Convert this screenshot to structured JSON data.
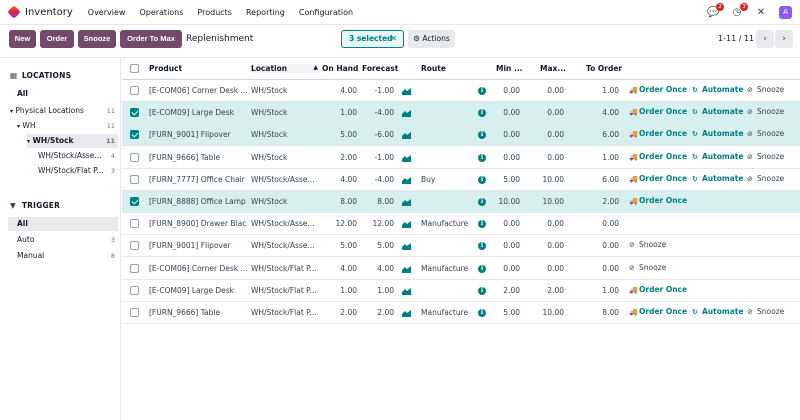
{
  "app": {
    "name": "Inventory"
  },
  "menu": [
    "Overview",
    "Operations",
    "Products",
    "Reporting",
    "Configuration"
  ],
  "nav": {
    "messages_badge": "2",
    "activity_badge": "3",
    "avatar_letter": "A"
  },
  "control": {
    "buttons": [
      "New",
      "Order",
      "Snooze",
      "Order To Max"
    ],
    "title": "Replenishment",
    "selected": "3 selected",
    "actions": "Actions",
    "pager": "1-11 / 11"
  },
  "sidebar": {
    "locations_title": "LOCATIONS",
    "locations": [
      {
        "label": "All",
        "count": "",
        "active": false,
        "bold": true
      },
      {
        "label": "Physical Locations",
        "count": "11",
        "active": false,
        "bold": false
      },
      {
        "label": "WH",
        "count": "11",
        "active": false,
        "bold": false
      },
      {
        "label": "WH/Stock",
        "count": "11",
        "active": true,
        "bold": true
      },
      {
        "label": "WH/Stock/Asse...",
        "count": "4",
        "active": false,
        "bold": false
      },
      {
        "label": "WH/Stock/Flat P...",
        "count": "3",
        "active": false,
        "bold": false
      }
    ],
    "trigger_title": "TRIGGER",
    "triggers": [
      {
        "label": "All",
        "count": "",
        "active": true
      },
      {
        "label": "Auto",
        "count": "3",
        "active": false
      },
      {
        "label": "Manual",
        "count": "8",
        "active": false
      }
    ]
  },
  "table": {
    "columns": [
      "Product",
      "Location",
      "On Hand",
      "Forecast",
      "Route",
      "Min ...",
      "Max...",
      "To Order"
    ],
    "actions": {
      "order_once": "Order Once",
      "automate": "Automate",
      "snooze": "Snooze"
    },
    "rows": [
      {
        "selected": false,
        "product": "[E-COM06] Corner Desk ...",
        "location": "WH/Stock",
        "on_hand": "4.00",
        "forecast": "-1.00",
        "route": "",
        "min": "0.00",
        "max": "0.00",
        "to_order": "1.00",
        "order_once": true,
        "automate": true,
        "snooze": true
      },
      {
        "selected": true,
        "product": "[E-COM09] Large Desk",
        "location": "WH/Stock",
        "on_hand": "1.00",
        "forecast": "-4.00",
        "route": "",
        "min": "0.00",
        "max": "0.00",
        "to_order": "4.00",
        "order_once": true,
        "automate": true,
        "snooze": true
      },
      {
        "selected": true,
        "product": "[FURN_9001] Flipover",
        "location": "WH/Stock",
        "on_hand": "5.00",
        "forecast": "-6.00",
        "route": "",
        "min": "0.00",
        "max": "0.00",
        "to_order": "6.00",
        "order_once": true,
        "automate": true,
        "snooze": true
      },
      {
        "selected": false,
        "product": "[FURN_9666] Table",
        "location": "WH/Stock",
        "on_hand": "2.00",
        "forecast": "-1.00",
        "route": "",
        "min": "0.00",
        "max": "0.00",
        "to_order": "1.00",
        "order_once": true,
        "automate": true,
        "snooze": true
      },
      {
        "selected": false,
        "product": "[FURN_7777] Office Chair",
        "location": "WH/Stock/Asse...",
        "on_hand": "4.00",
        "forecast": "-4.00",
        "route": "Buy",
        "min": "5.00",
        "max": "10.00",
        "to_order": "6.00",
        "order_once": true,
        "automate": true,
        "snooze": true
      },
      {
        "selected": true,
        "product": "[FURN_8888] Office Lamp",
        "location": "WH/Stock",
        "on_hand": "8.00",
        "forecast": "8.00",
        "route": "",
        "min": "10.00",
        "max": "10.00",
        "to_order": "2.00",
        "order_once": true,
        "automate": false,
        "snooze": false
      },
      {
        "selected": false,
        "product": "[FURN_8900] Drawer Black",
        "location": "WH/Stock/Asse...",
        "on_hand": "12.00",
        "forecast": "12.00",
        "route": "Manufacture",
        "min": "0.00",
        "max": "0.00",
        "to_order": "0.00",
        "order_once": false,
        "automate": false,
        "snooze": false
      },
      {
        "selected": false,
        "product": "[FURN_9001] Flipover",
        "location": "WH/Stock/Asse...",
        "on_hand": "5.00",
        "forecast": "5.00",
        "route": "",
        "min": "0.00",
        "max": "0.00",
        "to_order": "0.00",
        "order_once": false,
        "automate": false,
        "snooze": true
      },
      {
        "selected": false,
        "product": "[E-COM06] Corner Desk ...",
        "location": "WH/Stock/Flat P...",
        "on_hand": "4.00",
        "forecast": "4.00",
        "route": "Manufacture",
        "min": "0.00",
        "max": "0.00",
        "to_order": "0.00",
        "order_once": false,
        "automate": false,
        "snooze": true
      },
      {
        "selected": false,
        "product": "[E-COM09] Large Desk",
        "location": "WH/Stock/Flat P...",
        "on_hand": "1.00",
        "forecast": "1.00",
        "route": "",
        "min": "2.00",
        "max": "2.00",
        "to_order": "1.00",
        "order_once": true,
        "automate": false,
        "snooze": false
      },
      {
        "selected": false,
        "product": "[FURN_9666] Table",
        "location": "WH/Stock/Flat P...",
        "on_hand": "2.00",
        "forecast": "2.00",
        "route": "Manufacture",
        "min": "5.00",
        "max": "10.00",
        "to_order": "8.00",
        "order_once": true,
        "automate": true,
        "snooze": true
      }
    ]
  },
  "colors": {
    "brand": "#714b67",
    "accent": "#017e84",
    "selected_row": "#d8eff0"
  }
}
